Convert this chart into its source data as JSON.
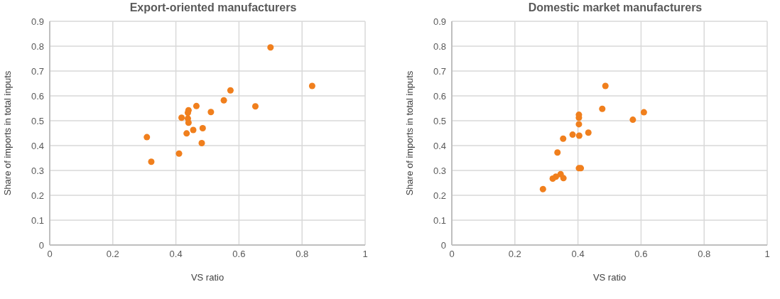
{
  "chart_data": [
    {
      "type": "scatter",
      "title": "Export-oriented manufacturers",
      "xlabel": "VS ratio",
      "ylabel": "Share of imports in total inputs",
      "x": [
        0.7,
        0.832,
        0.573,
        0.552,
        0.652,
        0.465,
        0.511,
        0.44,
        0.438,
        0.418,
        0.438,
        0.44,
        0.485,
        0.455,
        0.434,
        0.308,
        0.482,
        0.41,
        0.322
      ],
      "values": [
        0.795,
        0.64,
        0.622,
        0.582,
        0.558,
        0.559,
        0.535,
        0.542,
        0.532,
        0.512,
        0.509,
        0.492,
        0.47,
        0.463,
        0.449,
        0.434,
        0.41,
        0.368,
        0.335
      ],
      "color": "#f07f1d",
      "marker": "circle",
      "grid": true,
      "xlim": [
        0,
        1
      ],
      "xticks": [
        0,
        0.2,
        0.4,
        0.6,
        0.8,
        1
      ],
      "ylim": [
        0,
        0.9
      ],
      "yticks": [
        0,
        0.1,
        0.2,
        0.3,
        0.4,
        0.5,
        0.6,
        0.7,
        0.8,
        0.9
      ]
    },
    {
      "type": "scatter",
      "title": "Domestic market manufacturers",
      "xlabel": "VS ratio",
      "ylabel": "Share of imports in total inputs",
      "x": [
        0.487,
        0.477,
        0.609,
        0.574,
        0.403,
        0.403,
        0.403,
        0.433,
        0.383,
        0.404,
        0.353,
        0.335,
        0.403,
        0.409,
        0.345,
        0.33,
        0.32,
        0.354,
        0.289
      ],
      "values": [
        0.64,
        0.548,
        0.534,
        0.504,
        0.524,
        0.512,
        0.486,
        0.452,
        0.444,
        0.44,
        0.428,
        0.372,
        0.309,
        0.309,
        0.285,
        0.275,
        0.267,
        0.269,
        0.225
      ],
      "color": "#f07f1d",
      "marker": "circle",
      "grid": true,
      "xlim": [
        0,
        1
      ],
      "xticks": [
        0,
        0.2,
        0.4,
        0.6,
        0.8,
        1
      ],
      "ylim": [
        0,
        0.9
      ],
      "yticks": [
        0,
        0.1,
        0.2,
        0.3,
        0.4,
        0.5,
        0.6,
        0.7,
        0.8,
        0.9
      ]
    }
  ]
}
